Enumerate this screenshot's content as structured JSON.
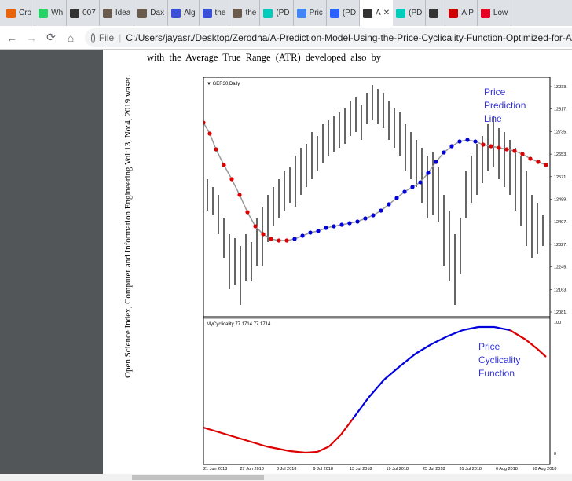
{
  "browser": {
    "tabs": [
      {
        "label": "Cro",
        "icon": "chrome-close-icon",
        "color": "#e8630a"
      },
      {
        "label": "Wh",
        "icon": "whatsapp-icon",
        "color": "#25d366"
      },
      {
        "label": "007",
        "icon": "github-icon",
        "color": "#333333"
      },
      {
        "label": "Idea",
        "icon": "thumbnail-icon",
        "color": "#6b5b4d"
      },
      {
        "label": "Dax",
        "icon": "thumbnail-icon",
        "color": "#6b5b4d"
      },
      {
        "label": "Alg",
        "icon": "globe-icon",
        "color": "#3c4fd8"
      },
      {
        "label": "the",
        "icon": "globe-icon",
        "color": "#3c4fd8"
      },
      {
        "label": "the",
        "icon": "thumbnail-icon",
        "color": "#6b5b4d"
      },
      {
        "label": "(PD",
        "icon": "researchgate-icon",
        "color": "#00ccbb"
      },
      {
        "label": "Pric",
        "icon": "google-icon",
        "color": "#4285f4"
      },
      {
        "label": "(PD",
        "icon": "tradingview-icon",
        "color": "#2962ff"
      },
      {
        "label": "A",
        "icon": "github-icon",
        "color": "#333333",
        "active": true
      },
      {
        "label": "(PD",
        "icon": "researchgate-icon",
        "color": "#00ccbb"
      },
      {
        "label": "",
        "icon": "github-icon",
        "color": "#333333"
      },
      {
        "label": "A P",
        "icon": "wikipedia-w-icon",
        "color": "#d00000"
      },
      {
        "label": "Low",
        "icon": "pinterest-icon",
        "color": "#e60023"
      }
    ],
    "url_scheme": "File",
    "url_path": "C:/Users/jayasr./Desktop/Zerodha/A-Prediction-Model-Using-the-Price-Cyclicality-Function-Optimized-for-Algorithmic-Tradin"
  },
  "document": {
    "side_text": "Open Science Index, Computer and Information Engineering Vol:13, No:4, 2019 waset.",
    "body_line": "with the Average True Range (ATR) developed also by"
  },
  "figure": {
    "top_title": "▼ GER30,Daily",
    "top_annotation": [
      "Price",
      "Prediction",
      "Line"
    ],
    "bottom_title": "MyCyclicality 77.1714 77.1714",
    "bottom_annotation": [
      "Price",
      "Cyclicality",
      "Function"
    ],
    "price_axis": [
      "12899.",
      "12817.",
      "12735.",
      "12653.",
      "12571.",
      "12489.",
      "12407.",
      "12327.",
      "12245.",
      "12163.",
      "12081."
    ],
    "cyc_axis_top": "100",
    "cyc_axis_bottom": "0",
    "dates": [
      "21 Jun 2018",
      "27 Jun 2018",
      "3 Jul 2018",
      "9 Jul 2018",
      "13 Jul 2018",
      "19 Jul 2018",
      "25 Jul 2018",
      "31 Jul 2018",
      "6 Aug 2018",
      "10 Aug 2018"
    ],
    "annotation_color": "#3232dc",
    "up_color": "#0000dd",
    "down_color": "#dd0000"
  }
}
